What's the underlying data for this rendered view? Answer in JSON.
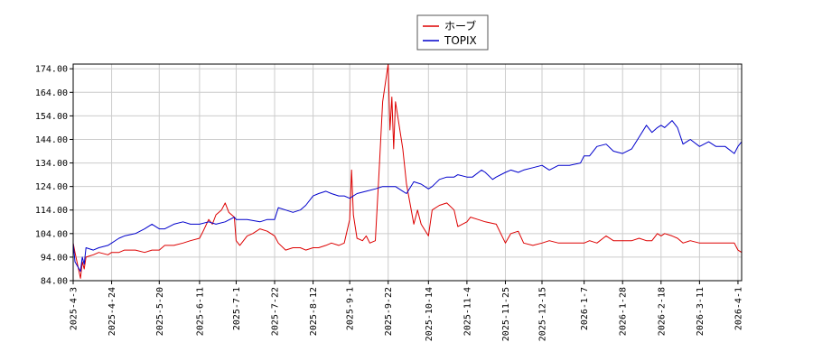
{
  "chart_data": {
    "type": "line",
    "title": "",
    "xlabel": "",
    "ylabel": "",
    "ylim": [
      84,
      176
    ],
    "yticks": [
      "84.00",
      "94.00",
      "104.00",
      "114.00",
      "124.00",
      "134.00",
      "144.00",
      "154.00",
      "164.00",
      "174.00"
    ],
    "xlim": [
      "2025-04-03",
      "2026-04-03"
    ],
    "xticks": [
      {
        "date": "2025-04-03",
        "label": "2025-4-3"
      },
      {
        "date": "2025-04-24",
        "label": "2025-4-24"
      },
      {
        "date": "2025-05-20",
        "label": "2025-5-20"
      },
      {
        "date": "2025-06-11",
        "label": "2025-6-11"
      },
      {
        "date": "2025-07-01",
        "label": "2025-7-1"
      },
      {
        "date": "2025-07-22",
        "label": "2025-7-22"
      },
      {
        "date": "2025-08-12",
        "label": "2025-8-12"
      },
      {
        "date": "2025-09-01",
        "label": "2025-9-1"
      },
      {
        "date": "2025-09-22",
        "label": "2025-9-22"
      },
      {
        "date": "2025-10-14",
        "label": "2025-10-14"
      },
      {
        "date": "2025-11-04",
        "label": "2025-11-4"
      },
      {
        "date": "2025-11-25",
        "label": "2025-11-25"
      },
      {
        "date": "2025-12-15",
        "label": "2025-12-15"
      },
      {
        "date": "2026-01-07",
        "label": "2026-1-7"
      },
      {
        "date": "2026-01-28",
        "label": "2026-1-28"
      },
      {
        "date": "2026-02-18",
        "label": "2026-2-18"
      },
      {
        "date": "2026-03-11",
        "label": "2026-3-11"
      },
      {
        "date": "2026-04-01",
        "label": "2026-4-1"
      }
    ],
    "grid": true,
    "legend": "top-center",
    "series": [
      {
        "name": "ホーブ",
        "color": "#dd0000",
        "points": [
          [
            "2025-04-03",
            100
          ],
          [
            "2025-04-04",
            96
          ],
          [
            "2025-04-07",
            85
          ],
          [
            "2025-04-08",
            92
          ],
          [
            "2025-04-09",
            89
          ],
          [
            "2025-04-10",
            94
          ],
          [
            "2025-04-14",
            95
          ],
          [
            "2025-04-17",
            96
          ],
          [
            "2025-04-22",
            95
          ],
          [
            "2025-04-24",
            96
          ],
          [
            "2025-04-28",
            96
          ],
          [
            "2025-05-01",
            97
          ],
          [
            "2025-05-07",
            97
          ],
          [
            "2025-05-12",
            96
          ],
          [
            "2025-05-16",
            97
          ],
          [
            "2025-05-20",
            97
          ],
          [
            "2025-05-23",
            99
          ],
          [
            "2025-05-28",
            99
          ],
          [
            "2025-06-02",
            100
          ],
          [
            "2025-06-06",
            101
          ],
          [
            "2025-06-11",
            102
          ],
          [
            "2025-06-13",
            105
          ],
          [
            "2025-06-16",
            110
          ],
          [
            "2025-06-18",
            108
          ],
          [
            "2025-06-20",
            112
          ],
          [
            "2025-06-23",
            114
          ],
          [
            "2025-06-25",
            117
          ],
          [
            "2025-06-27",
            113
          ],
          [
            "2025-06-30",
            111
          ],
          [
            "2025-07-01",
            101
          ],
          [
            "2025-07-03",
            99
          ],
          [
            "2025-07-07",
            103
          ],
          [
            "2025-07-10",
            104
          ],
          [
            "2025-07-14",
            106
          ],
          [
            "2025-07-18",
            105
          ],
          [
            "2025-07-22",
            103
          ],
          [
            "2025-07-24",
            100
          ],
          [
            "2025-07-28",
            97
          ],
          [
            "2025-08-01",
            98
          ],
          [
            "2025-08-05",
            98
          ],
          [
            "2025-08-08",
            97
          ],
          [
            "2025-08-12",
            98
          ],
          [
            "2025-08-15",
            98
          ],
          [
            "2025-08-19",
            99
          ],
          [
            "2025-08-22",
            100
          ],
          [
            "2025-08-26",
            99
          ],
          [
            "2025-08-29",
            100
          ],
          [
            "2025-09-01",
            110
          ],
          [
            "2025-09-02",
            131
          ],
          [
            "2025-09-03",
            112
          ],
          [
            "2025-09-05",
            102
          ],
          [
            "2025-09-08",
            101
          ],
          [
            "2025-09-10",
            103
          ],
          [
            "2025-09-12",
            100
          ],
          [
            "2025-09-15",
            101
          ],
          [
            "2025-09-17",
            130
          ],
          [
            "2025-09-19",
            160
          ],
          [
            "2025-09-22",
            176
          ],
          [
            "2025-09-23",
            148
          ],
          [
            "2025-09-24",
            162
          ],
          [
            "2025-09-25",
            140
          ],
          [
            "2025-09-26",
            160
          ],
          [
            "2025-09-30",
            140
          ],
          [
            "2025-10-02",
            125
          ],
          [
            "2025-10-06",
            108
          ],
          [
            "2025-10-08",
            114
          ],
          [
            "2025-10-10",
            108
          ],
          [
            "2025-10-14",
            103
          ],
          [
            "2025-10-16",
            114
          ],
          [
            "2025-10-20",
            116
          ],
          [
            "2025-10-24",
            117
          ],
          [
            "2025-10-28",
            114
          ],
          [
            "2025-10-30",
            107
          ],
          [
            "2025-11-04",
            109
          ],
          [
            "2025-11-06",
            111
          ],
          [
            "2025-11-10",
            110
          ],
          [
            "2025-11-14",
            109
          ],
          [
            "2025-11-20",
            108
          ],
          [
            "2025-11-25",
            100
          ],
          [
            "2025-11-28",
            104
          ],
          [
            "2025-12-02",
            105
          ],
          [
            "2025-12-05",
            100
          ],
          [
            "2025-12-10",
            99
          ],
          [
            "2025-12-15",
            100
          ],
          [
            "2025-12-19",
            101
          ],
          [
            "2025-12-24",
            100
          ],
          [
            "2025-12-30",
            100
          ],
          [
            "2026-01-07",
            100
          ],
          [
            "2026-01-10",
            101
          ],
          [
            "2026-01-14",
            100
          ],
          [
            "2026-01-19",
            103
          ],
          [
            "2026-01-23",
            101
          ],
          [
            "2026-01-28",
            101
          ],
          [
            "2026-02-02",
            101
          ],
          [
            "2026-02-06",
            102
          ],
          [
            "2026-02-10",
            101
          ],
          [
            "2026-02-13",
            101
          ],
          [
            "2026-02-16",
            104
          ],
          [
            "2026-02-18",
            103
          ],
          [
            "2026-02-20",
            104
          ],
          [
            "2026-02-24",
            103
          ],
          [
            "2026-02-27",
            102
          ],
          [
            "2026-03-02",
            100
          ],
          [
            "2026-03-06",
            101
          ],
          [
            "2026-03-11",
            100
          ],
          [
            "2026-03-16",
            100
          ],
          [
            "2026-03-20",
            100
          ],
          [
            "2026-03-25",
            100
          ],
          [
            "2026-03-30",
            100
          ],
          [
            "2026-04-01",
            97
          ],
          [
            "2026-04-03",
            96
          ]
        ]
      },
      {
        "name": "TOPIX",
        "color": "#0000cc",
        "points": [
          [
            "2025-04-03",
            100
          ],
          [
            "2025-04-04",
            92
          ],
          [
            "2025-04-07",
            88
          ],
          [
            "2025-04-08",
            94
          ],
          [
            "2025-04-09",
            91
          ],
          [
            "2025-04-10",
            98
          ],
          [
            "2025-04-14",
            97
          ],
          [
            "2025-04-17",
            98
          ],
          [
            "2025-04-22",
            99
          ],
          [
            "2025-04-24",
            100
          ],
          [
            "2025-04-28",
            102
          ],
          [
            "2025-05-01",
            103
          ],
          [
            "2025-05-07",
            104
          ],
          [
            "2025-05-12",
            106
          ],
          [
            "2025-05-16",
            108
          ],
          [
            "2025-05-20",
            106
          ],
          [
            "2025-05-23",
            106
          ],
          [
            "2025-05-28",
            108
          ],
          [
            "2025-06-02",
            109
          ],
          [
            "2025-06-06",
            108
          ],
          [
            "2025-06-11",
            108
          ],
          [
            "2025-06-16",
            109
          ],
          [
            "2025-06-20",
            108
          ],
          [
            "2025-06-25",
            109
          ],
          [
            "2025-06-30",
            111
          ],
          [
            "2025-07-01",
            110
          ],
          [
            "2025-07-07",
            110
          ],
          [
            "2025-07-14",
            109
          ],
          [
            "2025-07-18",
            110
          ],
          [
            "2025-07-22",
            110
          ],
          [
            "2025-07-24",
            115
          ],
          [
            "2025-07-28",
            114
          ],
          [
            "2025-08-01",
            113
          ],
          [
            "2025-08-05",
            114
          ],
          [
            "2025-08-08",
            116
          ],
          [
            "2025-08-12",
            120
          ],
          [
            "2025-08-15",
            121
          ],
          [
            "2025-08-19",
            122
          ],
          [
            "2025-08-22",
            121
          ],
          [
            "2025-08-26",
            120
          ],
          [
            "2025-08-29",
            120
          ],
          [
            "2025-09-01",
            119
          ],
          [
            "2025-09-05",
            121
          ],
          [
            "2025-09-10",
            122
          ],
          [
            "2025-09-15",
            123
          ],
          [
            "2025-09-19",
            124
          ],
          [
            "2025-09-22",
            124
          ],
          [
            "2025-09-26",
            124
          ],
          [
            "2025-09-30",
            122
          ],
          [
            "2025-10-02",
            121
          ],
          [
            "2025-10-06",
            126
          ],
          [
            "2025-10-10",
            125
          ],
          [
            "2025-10-14",
            123
          ],
          [
            "2025-10-16",
            124
          ],
          [
            "2025-10-20",
            127
          ],
          [
            "2025-10-24",
            128
          ],
          [
            "2025-10-28",
            128
          ],
          [
            "2025-10-30",
            129
          ],
          [
            "2025-11-04",
            128
          ],
          [
            "2025-11-07",
            128
          ],
          [
            "2025-11-12",
            131
          ],
          [
            "2025-11-14",
            130
          ],
          [
            "2025-11-18",
            127
          ],
          [
            "2025-11-20",
            128
          ],
          [
            "2025-11-25",
            130
          ],
          [
            "2025-11-28",
            131
          ],
          [
            "2025-12-02",
            130
          ],
          [
            "2025-12-05",
            131
          ],
          [
            "2025-12-10",
            132
          ],
          [
            "2025-12-15",
            133
          ],
          [
            "2025-12-19",
            131
          ],
          [
            "2025-12-24",
            133
          ],
          [
            "2025-12-30",
            133
          ],
          [
            "2026-01-05",
            134
          ],
          [
            "2026-01-07",
            137
          ],
          [
            "2026-01-10",
            137
          ],
          [
            "2026-01-14",
            141
          ],
          [
            "2026-01-19",
            142
          ],
          [
            "2026-01-23",
            139
          ],
          [
            "2026-01-28",
            138
          ],
          [
            "2026-02-02",
            140
          ],
          [
            "2026-02-06",
            145
          ],
          [
            "2026-02-10",
            150
          ],
          [
            "2026-02-13",
            147
          ],
          [
            "2026-02-16",
            149
          ],
          [
            "2026-02-18",
            150
          ],
          [
            "2026-02-20",
            149
          ],
          [
            "2026-02-24",
            152
          ],
          [
            "2026-02-27",
            149
          ],
          [
            "2026-03-02",
            142
          ],
          [
            "2026-03-06",
            144
          ],
          [
            "2026-03-11",
            141
          ],
          [
            "2026-03-16",
            143
          ],
          [
            "2026-03-20",
            141
          ],
          [
            "2026-03-25",
            141
          ],
          [
            "2026-03-30",
            138
          ],
          [
            "2026-04-01",
            141
          ],
          [
            "2026-04-03",
            143
          ]
        ]
      }
    ]
  }
}
